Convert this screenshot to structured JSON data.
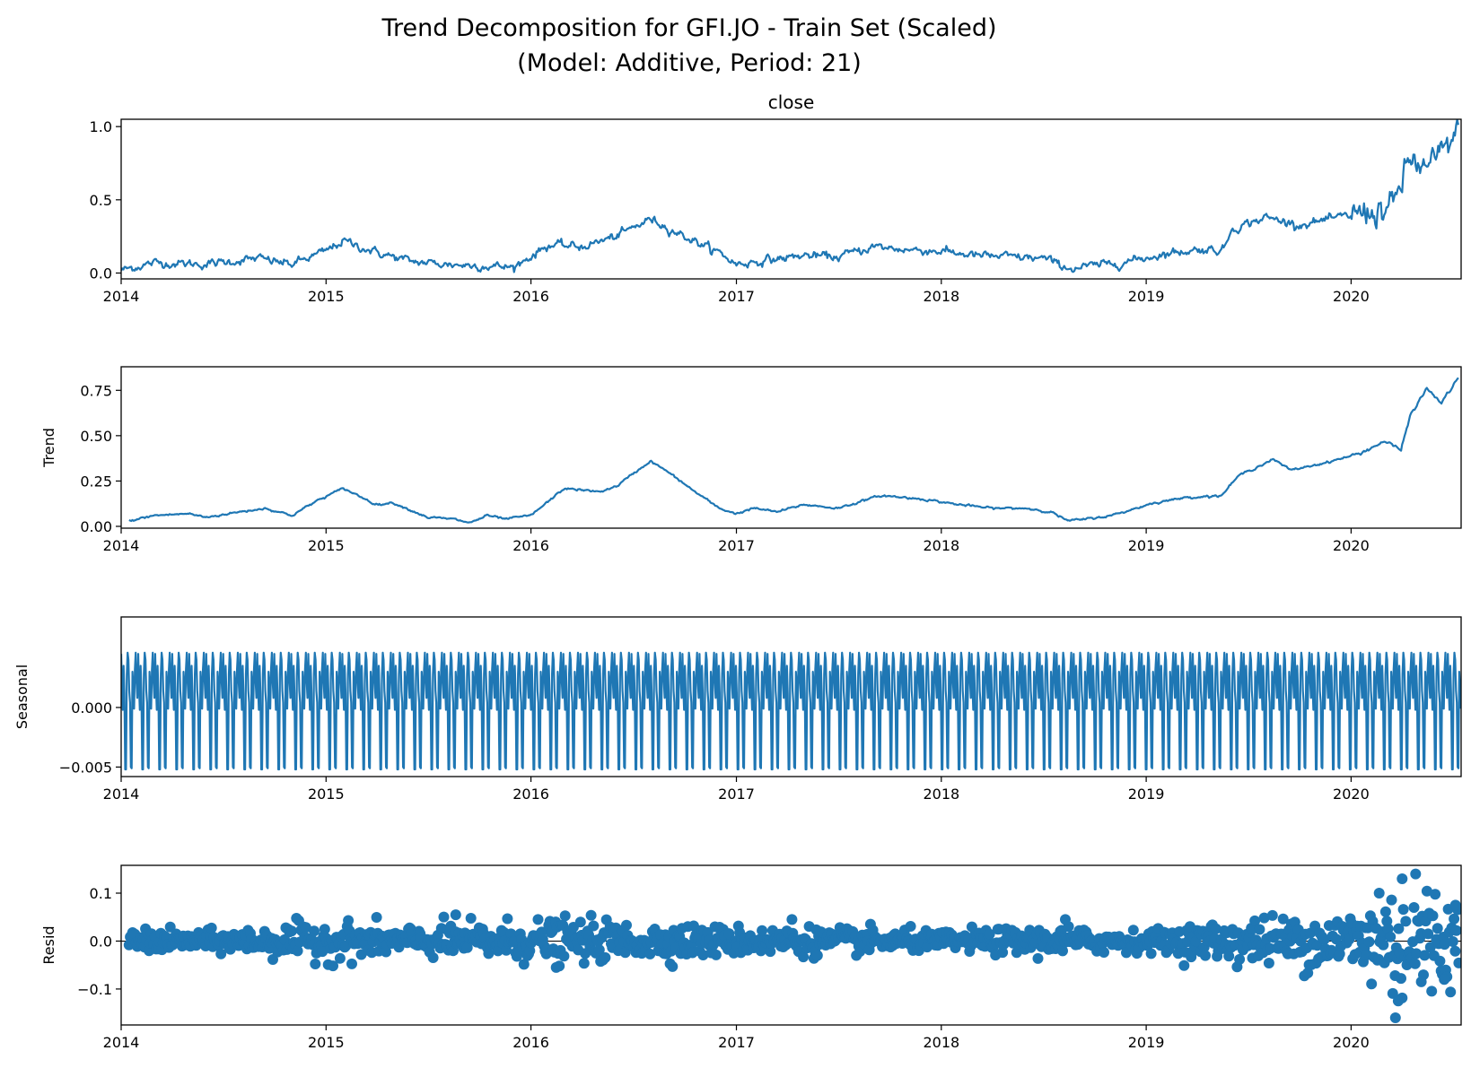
{
  "figure": {
    "title_line1": "Trend Decomposition for GFI.JO - Train Set (Scaled)",
    "title_line2": "(Model: Additive, Period: 21)"
  },
  "chart_data": [
    {
      "type": "line",
      "id": "close",
      "title": "close",
      "ylabel": "",
      "xlim": [
        "2014-01-01",
        "2020-07-15"
      ],
      "ylim": [
        -0.04,
        1.05
      ],
      "xticks": [
        "2014",
        "2015",
        "2016",
        "2017",
        "2018",
        "2019",
        "2020"
      ],
      "yticks": [
        {
          "value": 0.0,
          "label": "0.0"
        },
        {
          "value": 0.5,
          "label": "0.5"
        },
        {
          "value": 1.0,
          "label": "1.0"
        }
      ],
      "x": [
        "2014-01-01",
        "2014-03-01",
        "2014-06-01",
        "2014-09-01",
        "2014-11-01",
        "2015-01-01",
        "2015-02-01",
        "2015-04-01",
        "2015-06-01",
        "2015-08-01",
        "2015-10-01",
        "2015-12-01",
        "2016-02-01",
        "2016-04-01",
        "2016-06-01",
        "2016-08-01",
        "2016-10-01",
        "2016-12-01",
        "2017-01-01",
        "2017-03-01",
        "2017-05-01",
        "2017-07-01",
        "2017-09-01",
        "2017-11-01",
        "2018-01-01",
        "2018-03-01",
        "2018-05-01",
        "2018-07-01",
        "2018-08-20",
        "2018-10-01",
        "2018-12-01",
        "2019-02-01",
        "2019-04-01",
        "2019-05-20",
        "2019-06-01",
        "2019-08-01",
        "2019-10-01",
        "2019-12-01",
        "2020-02-01",
        "2020-03-15",
        "2020-04-15",
        "2020-05-15",
        "2020-06-15",
        "2020-07-10"
      ],
      "values": [
        0.02,
        0.07,
        0.06,
        0.1,
        0.06,
        0.15,
        0.22,
        0.14,
        0.08,
        0.06,
        0.05,
        0.04,
        0.19,
        0.18,
        0.25,
        0.37,
        0.25,
        0.14,
        0.06,
        0.09,
        0.12,
        0.11,
        0.18,
        0.16,
        0.15,
        0.12,
        0.11,
        0.1,
        0.03,
        0.05,
        0.08,
        0.13,
        0.16,
        0.16,
        0.3,
        0.38,
        0.33,
        0.37,
        0.42,
        0.44,
        0.78,
        0.7,
        0.83,
        0.98
      ]
    },
    {
      "type": "line",
      "id": "trend",
      "title": "",
      "ylabel": "Trend",
      "xlim": [
        "2014-01-01",
        "2020-07-15"
      ],
      "ylim": [
        -0.01,
        0.88
      ],
      "xticks": [
        "2014",
        "2015",
        "2016",
        "2017",
        "2018",
        "2019",
        "2020"
      ],
      "yticks": [
        {
          "value": 0.0,
          "label": "0.00"
        },
        {
          "value": 0.25,
          "label": "0.25"
        },
        {
          "value": 0.5,
          "label": "0.50"
        },
        {
          "value": 0.75,
          "label": "0.75"
        }
      ],
      "x": [
        "2014-01-15",
        "2014-03-01",
        "2014-05-01",
        "2014-06-01",
        "2014-08-01",
        "2014-09-15",
        "2014-11-01",
        "2014-12-15",
        "2015-02-01",
        "2015-04-01",
        "2015-05-01",
        "2015-07-01",
        "2015-08-15",
        "2015-09-15",
        "2015-10-15",
        "2015-11-15",
        "2016-01-01",
        "2016-03-01",
        "2016-04-01",
        "2016-05-01",
        "2016-06-01",
        "2016-07-01",
        "2016-08-01",
        "2016-09-01",
        "2016-10-15",
        "2016-12-01",
        "2017-01-01",
        "2017-02-01",
        "2017-03-15",
        "2017-05-01",
        "2017-07-01",
        "2017-09-15",
        "2017-12-01",
        "2018-02-01",
        "2018-04-01",
        "2018-06-01",
        "2018-07-15",
        "2018-08-15",
        "2018-09-15",
        "2018-11-01",
        "2019-01-15",
        "2019-03-15",
        "2019-05-15",
        "2019-06-15",
        "2019-08-15",
        "2019-09-15",
        "2019-11-15",
        "2020-01-15",
        "2020-03-01",
        "2020-03-30",
        "2020-04-15",
        "2020-05-15",
        "2020-06-10",
        "2020-07-10"
      ],
      "values": [
        0.03,
        0.06,
        0.07,
        0.05,
        0.08,
        0.1,
        0.06,
        0.14,
        0.21,
        0.12,
        0.13,
        0.05,
        0.04,
        0.02,
        0.06,
        0.04,
        0.06,
        0.21,
        0.2,
        0.19,
        0.22,
        0.29,
        0.36,
        0.3,
        0.2,
        0.1,
        0.07,
        0.1,
        0.08,
        0.12,
        0.1,
        0.17,
        0.15,
        0.12,
        0.1,
        0.1,
        0.08,
        0.03,
        0.04,
        0.06,
        0.13,
        0.16,
        0.17,
        0.28,
        0.37,
        0.31,
        0.35,
        0.4,
        0.47,
        0.42,
        0.61,
        0.76,
        0.68,
        0.82
      ]
    },
    {
      "type": "line",
      "id": "seasonal",
      "title": "",
      "ylabel": "Seasonal",
      "xlim": [
        "2014-01-01",
        "2020-07-15"
      ],
      "ylim": [
        -0.0058,
        0.0076
      ],
      "xticks": [
        "2014",
        "2015",
        "2016",
        "2017",
        "2018",
        "2019",
        "2020"
      ],
      "yticks": [
        {
          "value": -0.005,
          "label": "−0.005"
        },
        {
          "value": 0.0,
          "label": "0.000"
        }
      ],
      "period_days": 30.3,
      "cycle_values": [
        0.0045,
        0.0018,
        -0.0002,
        0.0035,
        0.0012,
        -0.0052,
        -0.0052,
        0.0028,
        0.0046,
        0.004,
        0.0014,
        0.0004,
        -0.005,
        -0.0051,
        0.003,
        0.0018,
        -0.0001,
        0.0032,
        0.0046,
        0.0022,
        0.0008
      ]
    },
    {
      "type": "scatter",
      "id": "resid",
      "title": "",
      "ylabel": "Resid",
      "xlim": [
        "2014-01-01",
        "2020-07-15"
      ],
      "ylim": [
        -0.175,
        0.158
      ],
      "xticks": [
        "2014",
        "2015",
        "2016",
        "2017",
        "2018",
        "2019",
        "2020"
      ],
      "yticks": [
        {
          "value": -0.1,
          "label": "−0.1"
        },
        {
          "value": 0.0,
          "label": "0.0"
        },
        {
          "value": 0.1,
          "label": "0.1"
        }
      ],
      "amplitude_envelope": {
        "x": [
          "2014-01-01",
          "2014-06-01",
          "2015-01-01",
          "2015-06-01",
          "2016-01-01",
          "2016-06-01",
          "2017-01-01",
          "2017-06-01",
          "2018-01-01",
          "2018-08-01",
          "2019-01-01",
          "2019-06-01",
          "2019-12-01",
          "2020-02-01",
          "2020-04-01",
          "2020-07-10"
        ],
        "amp": [
          0.012,
          0.01,
          0.02,
          0.015,
          0.022,
          0.02,
          0.015,
          0.014,
          0.01,
          0.015,
          0.01,
          0.022,
          0.03,
          0.045,
          0.07,
          0.05
        ]
      },
      "notable_points": [
        {
          "x": "2015-08-20",
          "y": 0.055
        },
        {
          "x": "2016-02-15",
          "y": -0.055
        },
        {
          "x": "2017-04-10",
          "y": 0.045
        },
        {
          "x": "2018-08-10",
          "y": 0.045
        },
        {
          "x": "2020-02-20",
          "y": 0.1
        },
        {
          "x": "2020-03-20",
          "y": -0.16
        },
        {
          "x": "2020-03-25",
          "y": -0.125
        },
        {
          "x": "2020-04-01",
          "y": 0.13
        },
        {
          "x": "2020-04-25",
          "y": 0.14
        },
        {
          "x": "2020-05-05",
          "y": -0.085
        },
        {
          "x": "2020-06-15",
          "y": -0.08
        },
        {
          "x": "2020-07-05",
          "y": 0.075
        }
      ]
    }
  ]
}
